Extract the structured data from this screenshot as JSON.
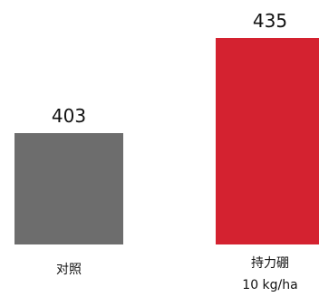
{
  "chart_data": {
    "type": "bar",
    "categories": [
      "对照",
      "持力硼"
    ],
    "category_sublabels": [
      "",
      "10 kg/ha"
    ],
    "values": [
      403,
      435
    ],
    "colors": [
      "#6d6d6d",
      "#d42230"
    ],
    "title": "",
    "xlabel": "",
    "ylabel": "",
    "grid": false,
    "legend": "none"
  }
}
